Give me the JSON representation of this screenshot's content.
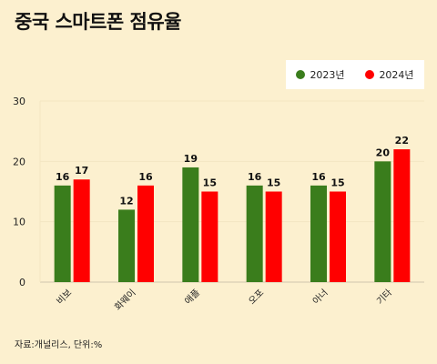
{
  "title": "중국 스마트폰 점유율",
  "source": "자료:개널리스, 단위:%",
  "colors": {
    "series_2023": "#3a7d1c",
    "series_2024": "#ff0000",
    "background": "#fcf0cf"
  },
  "chart_data": {
    "type": "bar",
    "title": "중국 스마트폰 점유율",
    "categories": [
      "비보",
      "화웨이",
      "애플",
      "오포",
      "아너",
      "기타"
    ],
    "series": [
      {
        "name": "2023년",
        "values": [
          16,
          12,
          19,
          16,
          16,
          20
        ]
      },
      {
        "name": "2024년",
        "values": [
          17,
          16,
          15,
          15,
          15,
          22
        ]
      }
    ],
    "ylim": [
      0,
      30
    ],
    "yticks": [
      0,
      10,
      20,
      30
    ],
    "xlabel": "",
    "ylabel": "",
    "grid": true,
    "legend_position": "top-right"
  }
}
